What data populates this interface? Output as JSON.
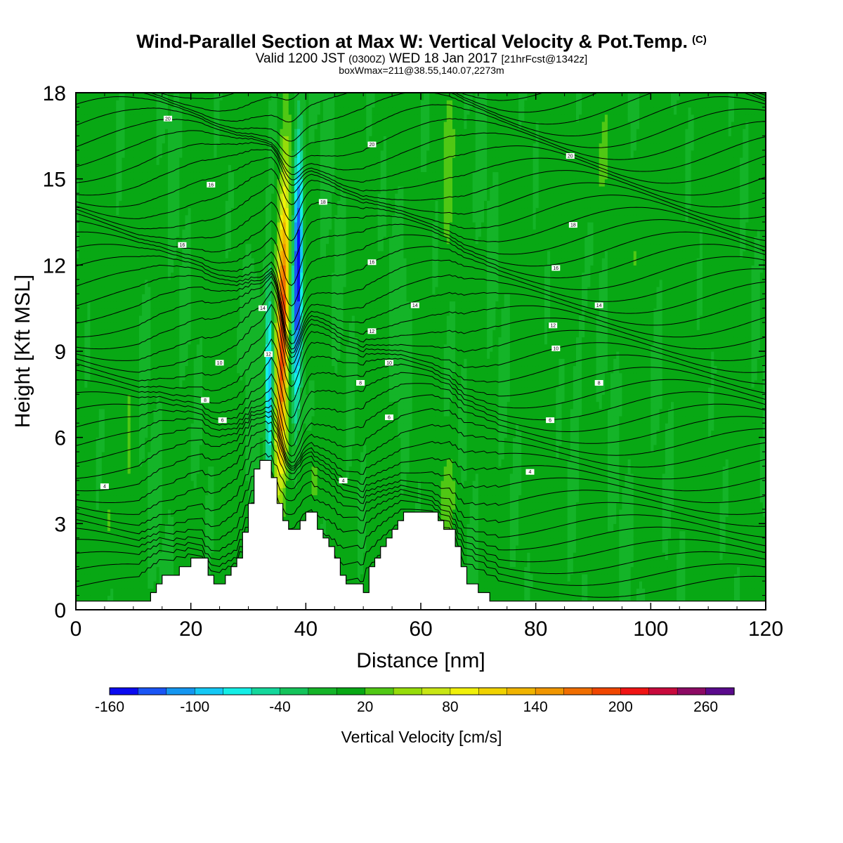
{
  "header": {
    "title": "Wind-Parallel Section at Max W: Vertical Velocity & Pot.Temp.",
    "copyright": "(C)",
    "valid_prefix": "Valid 1200 JST",
    "valid_utc": "(0300Z)",
    "valid_date": "WED 18 Jan 2017",
    "forecast": "[21hrFcst@1342z]",
    "boxwmax": "boxWmax=211@38.55,140.07,2273m"
  },
  "chart_data": {
    "type": "heatmap",
    "xlabel": "Distance [nm]",
    "ylabel": "Height [Kft MSL]",
    "xlim": [
      0,
      120
    ],
    "ylim": [
      0,
      18
    ],
    "x_ticks": [
      0,
      20,
      40,
      60,
      80,
      100,
      120
    ],
    "y_ticks": [
      0,
      3,
      6,
      9,
      12,
      15,
      18
    ],
    "colorbar": {
      "label": "Vertical Velocity [cm/s]",
      "tick_labels": [
        "-160",
        "-100",
        "-40",
        "20",
        "80",
        "140",
        "200",
        "260"
      ],
      "tick_values": [
        -160,
        -100,
        -40,
        20,
        80,
        140,
        200,
        260
      ],
      "levels": [
        -160,
        -140,
        -120,
        -100,
        -80,
        -60,
        -40,
        -20,
        0,
        20,
        40,
        60,
        80,
        100,
        120,
        140,
        160,
        180,
        200,
        220,
        240,
        260,
        280
      ],
      "colors": [
        "#0a0af0",
        "#1a55f5",
        "#1496f0",
        "#14c8f5",
        "#14eee6",
        "#14d79b",
        "#14c35a",
        "#14b428",
        "#08a814",
        "#50c814",
        "#96dc0a",
        "#c8e614",
        "#f0f00a",
        "#f0d200",
        "#f0b400",
        "#f09600",
        "#f06e00",
        "#f04600",
        "#f01414",
        "#c80a3c",
        "#8c0a64",
        "#5a0a8c"
      ]
    },
    "contour_labels": [
      {
        "x": 5,
        "y": 4.3,
        "text": "4"
      },
      {
        "x": 16,
        "y": 17.1,
        "text": "20"
      },
      {
        "x": 18.5,
        "y": 12.7,
        "text": "16"
      },
      {
        "x": 23.5,
        "y": 14.8,
        "text": "16"
      },
      {
        "x": 25,
        "y": 8.6,
        "text": "10"
      },
      {
        "x": 22.5,
        "y": 7.3,
        "text": "8"
      },
      {
        "x": 25.5,
        "y": 6.6,
        "text": "6"
      },
      {
        "x": 32.5,
        "y": 10.5,
        "text": "14"
      },
      {
        "x": 33.5,
        "y": 8.9,
        "text": "12"
      },
      {
        "x": 43,
        "y": 14.2,
        "text": "18"
      },
      {
        "x": 46.5,
        "y": 4.5,
        "text": "4"
      },
      {
        "x": 51.5,
        "y": 16.2,
        "text": "20"
      },
      {
        "x": 51.5,
        "y": 12.1,
        "text": "16"
      },
      {
        "x": 51.5,
        "y": 9.7,
        "text": "12"
      },
      {
        "x": 49.5,
        "y": 7.9,
        "text": "8"
      },
      {
        "x": 54.5,
        "y": 8.6,
        "text": "10"
      },
      {
        "x": 54.5,
        "y": 6.7,
        "text": "6"
      },
      {
        "x": 59,
        "y": 10.6,
        "text": "14"
      },
      {
        "x": 79,
        "y": 4.8,
        "text": "4"
      },
      {
        "x": 82.5,
        "y": 6.6,
        "text": "6"
      },
      {
        "x": 83,
        "y": 9.9,
        "text": "12"
      },
      {
        "x": 83.5,
        "y": 9.1,
        "text": "10"
      },
      {
        "x": 83.5,
        "y": 11.9,
        "text": "16"
      },
      {
        "x": 86.5,
        "y": 13.4,
        "text": "18"
      },
      {
        "x": 86,
        "y": 15.8,
        "text": "20"
      },
      {
        "x": 91,
        "y": 10.6,
        "text": "14"
      },
      {
        "x": 91,
        "y": 7.9,
        "text": "8"
      }
    ],
    "terrain_heights_kft": [
      0,
      0,
      0,
      0,
      0,
      0,
      0,
      0,
      0,
      0,
      0,
      0,
      0.3,
      0.6,
      0.9,
      1.2,
      1.2,
      1.2,
      1.5,
      1.5,
      1.8,
      1.8,
      1.8,
      1.2,
      0.9,
      0.9,
      1.2,
      1.5,
      1.8,
      2.7,
      3.7,
      4.9,
      5.2,
      5.2,
      4.6,
      3.7,
      3.1,
      2.8,
      2.8,
      3.1,
      3.4,
      3.4,
      2.8,
      2.5,
      2.2,
      1.8,
      1.2,
      0.9,
      0.9,
      0.9,
      0.6,
      1.5,
      1.8,
      2.2,
      2.5,
      2.8,
      3.1,
      3.4,
      3.4,
      3.4,
      3.4,
      3.4,
      3.4,
      3.1,
      2.8,
      2.8,
      2.2,
      1.5,
      0.9,
      0.9,
      0.6,
      0.6,
      0.3,
      0.3,
      0,
      0,
      0,
      0,
      0,
      0,
      0,
      0,
      0,
      0,
      0,
      0,
      0,
      0,
      0,
      0,
      0,
      0,
      0,
      0,
      0,
      0,
      0,
      0,
      0,
      0,
      0,
      0,
      0,
      0,
      0,
      0,
      0,
      0,
      0,
      0,
      0,
      0,
      0,
      0,
      0,
      0,
      0,
      0,
      0,
      0,
      0
    ]
  }
}
